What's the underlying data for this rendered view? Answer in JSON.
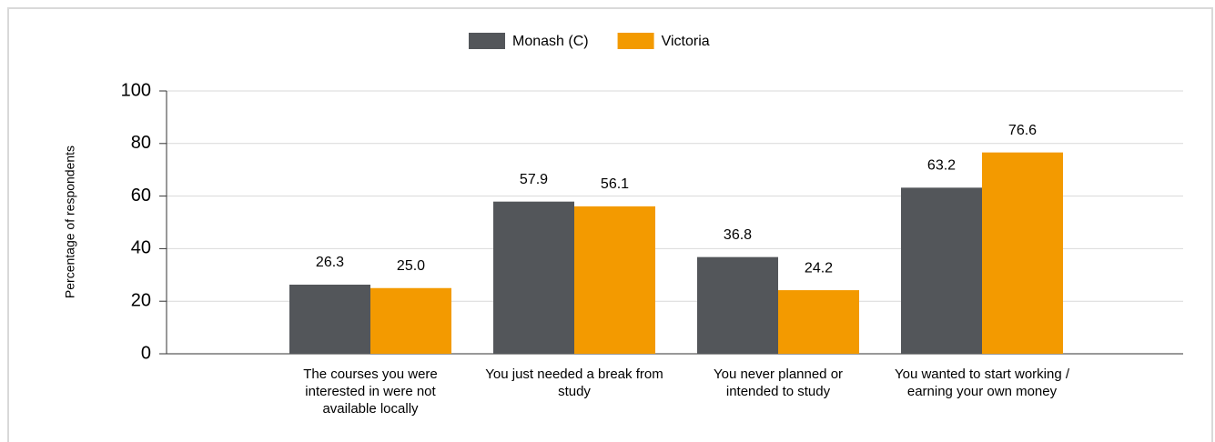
{
  "chart_data": {
    "type": "bar",
    "y_axis_label": "Percentage of respondents",
    "categories": [
      "The courses you were interested in were not available locally",
      "You just needed a break from study",
      "You never planned or intended to study",
      "You wanted to start working / earning your own money"
    ],
    "series": [
      {
        "name": "Monash (C)",
        "color": "#53565a",
        "values": [
          26.3,
          57.9,
          36.8,
          63.2
        ],
        "value_labels": [
          "26.3",
          "57.9",
          "36.8",
          "63.2"
        ]
      },
      {
        "name": "Victoria",
        "color": "#f39a00",
        "values": [
          25.0,
          56.1,
          24.2,
          76.6
        ],
        "value_labels": [
          "25.0",
          "56.1",
          "24.2",
          "76.6"
        ]
      }
    ],
    "ylim": [
      0,
      100
    ],
    "yticks": [
      0,
      20,
      40,
      60,
      80,
      100
    ],
    "grid": true,
    "legend": "top"
  }
}
